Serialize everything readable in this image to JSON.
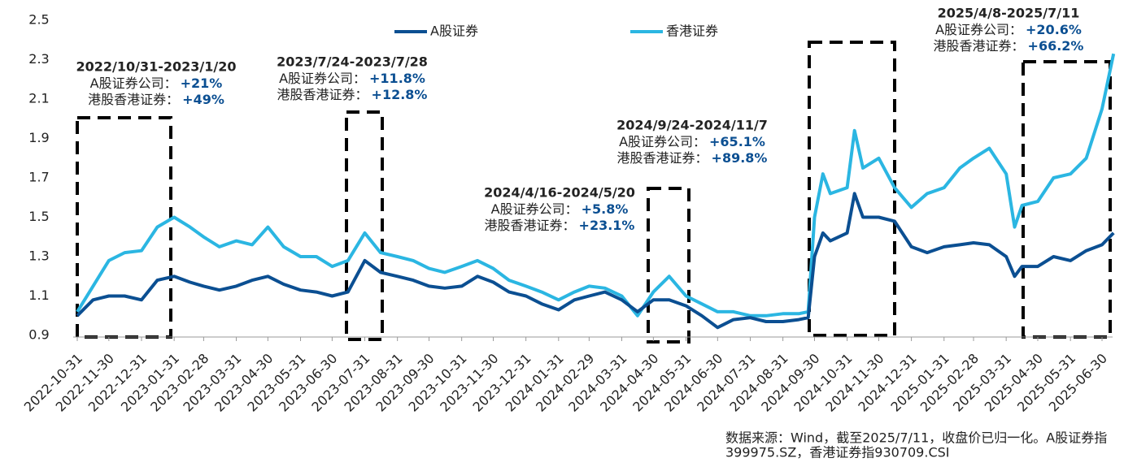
{
  "chart_data": {
    "type": "line",
    "x": [
      "2022-10-31",
      "2022-11-15",
      "2022-11-30",
      "2022-12-15",
      "2022-12-31",
      "2023-01-15",
      "2023-01-31",
      "2023-02-15",
      "2023-02-28",
      "2023-03-15",
      "2023-03-31",
      "2023-04-15",
      "2023-04-30",
      "2023-05-15",
      "2023-05-31",
      "2023-06-15",
      "2023-06-30",
      "2023-07-15",
      "2023-07-31",
      "2023-08-15",
      "2023-08-31",
      "2023-09-15",
      "2023-09-30",
      "2023-10-15",
      "2023-10-31",
      "2023-11-15",
      "2023-11-30",
      "2023-12-15",
      "2023-12-31",
      "2024-01-15",
      "2024-01-31",
      "2024-02-15",
      "2024-02-29",
      "2024-03-15",
      "2024-03-31",
      "2024-04-15",
      "2024-04-30",
      "2024-05-15",
      "2024-05-31",
      "2024-06-15",
      "2024-06-30",
      "2024-07-15",
      "2024-07-31",
      "2024-08-15",
      "2024-08-31",
      "2024-09-15",
      "2024-09-24",
      "2024-09-30",
      "2024-10-08",
      "2024-10-15",
      "2024-10-31",
      "2024-11-07",
      "2024-11-15",
      "2024-11-30",
      "2024-12-15",
      "2024-12-31",
      "2025-01-15",
      "2025-01-31",
      "2025-02-15",
      "2025-02-28",
      "2025-03-15",
      "2025-03-31",
      "2025-04-08",
      "2025-04-15",
      "2025-04-30",
      "2025-05-15",
      "2025-05-31",
      "2025-06-15",
      "2025-06-30",
      "2025-07-11"
    ],
    "series": [
      {
        "name": "A股证券",
        "color": "#0b4f92",
        "values": [
          1.0,
          1.08,
          1.1,
          1.1,
          1.08,
          1.18,
          1.2,
          1.17,
          1.15,
          1.13,
          1.15,
          1.18,
          1.2,
          1.16,
          1.13,
          1.12,
          1.1,
          1.12,
          1.28,
          1.22,
          1.2,
          1.18,
          1.15,
          1.14,
          1.15,
          1.2,
          1.17,
          1.12,
          1.1,
          1.06,
          1.03,
          1.08,
          1.1,
          1.12,
          1.08,
          1.02,
          1.08,
          1.08,
          1.05,
          1.0,
          0.94,
          0.98,
          0.99,
          0.97,
          0.97,
          0.98,
          0.99,
          1.3,
          1.42,
          1.38,
          1.42,
          1.62,
          1.5,
          1.5,
          1.48,
          1.35,
          1.32,
          1.35,
          1.36,
          1.37,
          1.36,
          1.3,
          1.2,
          1.25,
          1.25,
          1.3,
          1.28,
          1.33,
          1.36,
          1.42
        ]
      },
      {
        "name": "香港证券",
        "color": "#2bb6e2",
        "values": [
          1.02,
          1.15,
          1.28,
          1.32,
          1.33,
          1.45,
          1.5,
          1.45,
          1.4,
          1.35,
          1.38,
          1.36,
          1.45,
          1.35,
          1.3,
          1.3,
          1.25,
          1.28,
          1.42,
          1.32,
          1.3,
          1.28,
          1.24,
          1.22,
          1.25,
          1.28,
          1.24,
          1.18,
          1.15,
          1.12,
          1.08,
          1.12,
          1.15,
          1.14,
          1.1,
          1.0,
          1.12,
          1.2,
          1.1,
          1.06,
          1.02,
          1.02,
          1.0,
          1.0,
          1.01,
          1.01,
          1.02,
          1.5,
          1.72,
          1.62,
          1.65,
          1.94,
          1.75,
          1.8,
          1.65,
          1.55,
          1.62,
          1.65,
          1.75,
          1.8,
          1.85,
          1.72,
          1.45,
          1.56,
          1.58,
          1.7,
          1.72,
          1.8,
          2.05,
          2.33
        ]
      }
    ],
    "ylim": [
      0.9,
      2.5
    ],
    "yticks": [
      0.9,
      1.1,
      1.3,
      1.5,
      1.7,
      1.9,
      2.1,
      2.3,
      2.5
    ],
    "xticks": [
      "2022-10-31",
      "2022-11-30",
      "2022-12-31",
      "2023-01-31",
      "2023-02-28",
      "2023-03-31",
      "2023-04-30",
      "2023-05-31",
      "2023-06-30",
      "2023-07-31",
      "2023-08-31",
      "2023-09-30",
      "2023-10-31",
      "2023-11-30",
      "2023-12-31",
      "2024-01-31",
      "2024-02-29",
      "2024-03-31",
      "2024-04-30",
      "2024-05-31",
      "2024-06-30",
      "2024-07-31",
      "2024-08-31",
      "2024-09-30",
      "2024-10-31",
      "2024-11-30",
      "2024-12-31",
      "2025-01-31",
      "2025-02-28",
      "2025-03-31",
      "2025-04-30",
      "2025-05-31",
      "2025-06-30"
    ],
    "annotations": [
      {
        "title": "2022/10/31-2023/1/20",
        "lines": [
          {
            "label": "A股证券公司：",
            "value": "+21%"
          },
          {
            "label": "港股香港证券：",
            "value": "+49%"
          }
        ]
      },
      {
        "title": "2023/7/24-2023/7/28",
        "lines": [
          {
            "label": "A股证券公司：",
            "value": "+11.8%"
          },
          {
            "label": "港股香港证券：",
            "value": "+12.8%"
          }
        ]
      },
      {
        "title": "2024/4/16-2024/5/20",
        "lines": [
          {
            "label": "A股证券公司：",
            "value": "+5.8%"
          },
          {
            "label": "港股香港证券：",
            "value": "+23.1%"
          }
        ]
      },
      {
        "title": "2024/9/24-2024/11/7",
        "lines": [
          {
            "label": "A股证券公司：",
            "value": "+65.1%"
          },
          {
            "label": "港股香港证券：",
            "value": "+89.8%"
          }
        ]
      },
      {
        "title": "2025/4/8-2025/7/11",
        "lines": [
          {
            "label": "A股证券公司：",
            "value": "+20.6%"
          },
          {
            "label": "港股香港证券：",
            "value": "+66.2%"
          }
        ]
      }
    ],
    "source": [
      "数据来源：Wind，截至2025/7/11，收盘价已归一化。A股证券指",
      "399975.SZ，香港证券指930709.CSI"
    ]
  }
}
